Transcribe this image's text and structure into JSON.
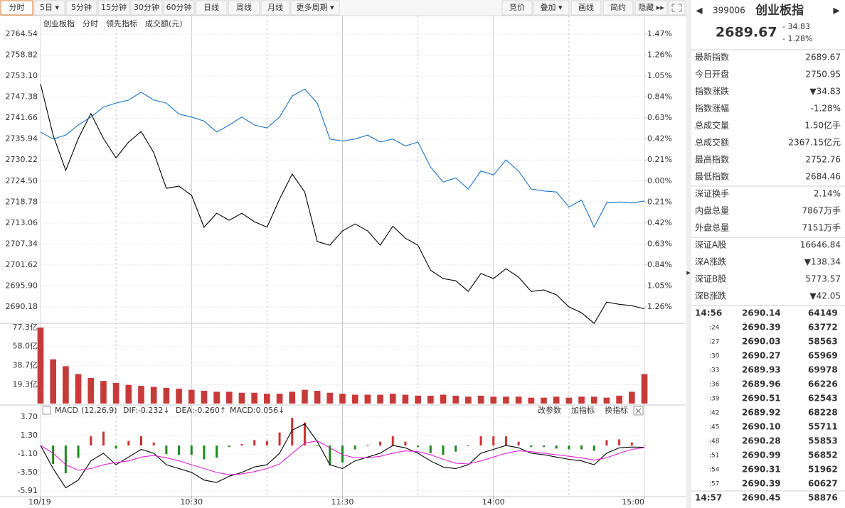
{
  "toolbar": {
    "tabs": [
      "分时",
      "5日 ▾",
      "5分钟",
      "15分钟",
      "30分钟",
      "60分钟",
      "日线",
      "周线",
      "月线",
      "更多周期 ▾"
    ],
    "tools": [
      "竞价",
      "叠加 ▾",
      "画线",
      "简约",
      "隐藏 ▸▸"
    ]
  },
  "chart_data": [
    {
      "type": "line",
      "subtitle": "分时",
      "extra_label": "成交额(元)",
      "xlim": [
        0,
        240
      ],
      "x": [
        0,
        5,
        10,
        15,
        20,
        25,
        30,
        35,
        40,
        45,
        50,
        55,
        60,
        65,
        70,
        75,
        80,
        85,
        90,
        95,
        100,
        105,
        110,
        115,
        120,
        125,
        130,
        135,
        140,
        145,
        150,
        155,
        160,
        165,
        170,
        175,
        180,
        185,
        190,
        195,
        200,
        205,
        210,
        215,
        220,
        225,
        230,
        235,
        240
      ],
      "ylim": [
        2690.18,
        2764.54
      ],
      "yticks": [
        2764.54,
        2758.82,
        {
          "value": 2753.1,
          "label": "2753.10"
        },
        2747.38,
        2741.66,
        2735.94,
        2730.22,
        {
          "value": 2724.5,
          "label": "2724.50"
        },
        2718.78,
        2713.06,
        2707.34,
        2701.62,
        {
          "value": 2695.9,
          "label": "2695.90"
        },
        2690.18
      ],
      "y2lim": [
        -1.26,
        1.47
      ],
      "y2ticks": [
        {
          "value": 1.47,
          "label": "1.47%"
        },
        {
          "value": 1.26,
          "label": "1.26%"
        },
        {
          "value": 1.05,
          "label": "1.05%"
        },
        {
          "value": 0.84,
          "label": "0.84%"
        },
        {
          "value": 0.63,
          "label": "0.63%"
        },
        {
          "value": 0.42,
          "label": "0.42%"
        },
        {
          "value": 0.21,
          "label": "0.21%"
        },
        {
          "value": 0,
          "label": "0.00%"
        },
        {
          "value": -0.21,
          "label": "0.21%"
        },
        {
          "value": -0.42,
          "label": "0.42%"
        },
        {
          "value": -0.63,
          "label": "0.63%"
        },
        {
          "value": -0.84,
          "label": "0.84%"
        },
        {
          "value": -1.05,
          "label": "1.05%"
        },
        {
          "value": -1.26,
          "label": "1.26%"
        }
      ],
      "grid": true,
      "up_color": "#cc0000",
      "down_color": "#008800",
      "flat_color": "#555555",
      "series": [
        {
          "name": "创业板指",
          "color": "#000000",
          "values": [
            2750.95,
            2737.0,
            2727.4,
            2736.1,
            2742.9,
            2736.1,
            2730.8,
            2735.1,
            2738.0,
            2732.2,
            2722.5,
            2723.1,
            2720.6,
            2711.9,
            2715.7,
            2713.8,
            2715.7,
            2713.4,
            2711.9,
            2719.6,
            2726.4,
            2721.5,
            2708.0,
            2707.0,
            2710.9,
            2712.8,
            2710.9,
            2707.0,
            2712.2,
            2708.9,
            2707.0,
            2700.2,
            2697.9,
            2697.3,
            2694.4,
            2699.3,
            2697.9,
            2700.6,
            2698.3,
            2694.4,
            2694.8,
            2693.5,
            2690.2,
            2688.6,
            2685.7,
            2691.5,
            2690.9,
            2690.5,
            2689.67
          ]
        },
        {
          "name": "领先指标",
          "color": "#1a73c8",
          "axis": "y2",
          "values": [
            0.49,
            0.42,
            0.46,
            0.56,
            0.64,
            0.74,
            0.78,
            0.81,
            0.89,
            0.81,
            0.78,
            0.67,
            0.64,
            0.6,
            0.49,
            0.56,
            0.64,
            0.56,
            0.53,
            0.64,
            0.85,
            0.92,
            0.78,
            0.42,
            0.4,
            0.42,
            0.46,
            0.39,
            0.42,
            0.35,
            0.39,
            0.14,
            -0.01,
            0.03,
            -0.08,
            0.1,
            0.06,
            0.21,
            0.1,
            -0.08,
            -0.1,
            -0.11,
            -0.26,
            -0.19,
            -0.46,
            -0.22,
            -0.21,
            -0.22,
            -0.2
          ]
        }
      ]
    },
    {
      "type": "bar",
      "xlim": [
        0,
        240
      ],
      "x": [
        0,
        5,
        10,
        15,
        20,
        25,
        30,
        35,
        40,
        45,
        50,
        55,
        60,
        65,
        70,
        75,
        80,
        85,
        90,
        95,
        100,
        105,
        110,
        115,
        120,
        125,
        130,
        135,
        140,
        145,
        150,
        155,
        160,
        165,
        170,
        175,
        180,
        185,
        190,
        195,
        200,
        205,
        210,
        215,
        220,
        225,
        230,
        235,
        240
      ],
      "ylim": [
        0,
        77.3
      ],
      "yticks": [
        {
          "value": 77.3,
          "label": "77.3亿"
        },
        {
          "value": 58.0,
          "label": "58.0亿"
        },
        {
          "value": 38.7,
          "label": "38.7亿"
        },
        {
          "value": 19.3,
          "label": "19.3亿"
        }
      ],
      "color": "#c83a3a",
      "values": [
        77.3,
        45,
        38,
        30,
        26,
        23,
        21,
        19,
        18,
        17,
        16,
        15,
        14,
        13,
        12,
        12,
        11,
        11,
        10,
        10,
        12,
        14,
        13,
        11,
        10,
        9,
        9,
        9,
        10,
        9,
        8,
        8,
        9,
        8,
        7,
        8,
        7,
        7,
        7,
        6,
        6,
        7,
        6,
        7,
        7,
        6,
        8,
        12,
        30
      ]
    },
    {
      "type": "macd",
      "title": "MACD",
      "params": "(12,26,9)",
      "buttons": [
        "改参数",
        "加指标",
        "换指标"
      ],
      "xlim": [
        0,
        240
      ],
      "x": [
        0,
        5,
        10,
        15,
        20,
        25,
        30,
        35,
        40,
        45,
        50,
        55,
        60,
        65,
        70,
        75,
        80,
        85,
        90,
        95,
        100,
        105,
        110,
        115,
        120,
        125,
        130,
        135,
        140,
        145,
        150,
        155,
        160,
        165,
        170,
        175,
        180,
        185,
        190,
        195,
        200,
        205,
        210,
        215,
        220,
        225,
        230,
        235,
        240
      ],
      "xticks": [
        {
          "value": 0,
          "label": "10/19"
        },
        {
          "value": 60,
          "label": "10:30"
        },
        {
          "value": 120,
          "label": "11:30"
        },
        {
          "value": 180,
          "label": "14:00"
        },
        {
          "value": 240,
          "label": "15:00"
        }
      ],
      "ylim": [
        -5.91,
        3.7
      ],
      "yticks": [
        {
          "value": 3.7,
          "label": "3.70"
        },
        {
          "value": 1.3,
          "label": "1.30"
        },
        {
          "value": -1.1,
          "label": "-1.10"
        },
        {
          "value": -3.5,
          "label": "-3.50"
        },
        -5.91
      ],
      "up_color": "#d03030",
      "down_color": "#1a8a1a",
      "series": [
        {
          "name": "DIF:-0.232↓",
          "color": "#000000",
          "values": [
            0,
            -3.0,
            -5.5,
            -4.5,
            -2.0,
            -1.0,
            -2.5,
            -1.5,
            -0.5,
            -1.0,
            -2.5,
            -3.0,
            -3.5,
            -4.5,
            -4.8,
            -4.0,
            -3.5,
            -2.8,
            -2.5,
            -1.0,
            2.0,
            2.8,
            0.5,
            -2.5,
            -3.0,
            -2.0,
            -1.5,
            -1.0,
            0.0,
            -0.3,
            -1.0,
            -2.0,
            -2.8,
            -3.0,
            -2.5,
            -1.0,
            -0.5,
            0.0,
            -0.3,
            -1.0,
            -1.2,
            -1.5,
            -1.8,
            -2.0,
            -2.5,
            -1.0,
            -0.3,
            -0.2,
            -0.232
          ]
        },
        {
          "name": "DEA:-0.260↑",
          "color": "#e020d8",
          "values": [
            0,
            -1.0,
            -2.5,
            -3.2,
            -3.0,
            -2.5,
            -2.2,
            -2.0,
            -1.5,
            -1.3,
            -1.6,
            -2.0,
            -2.5,
            -3.0,
            -3.5,
            -3.8,
            -3.7,
            -3.4,
            -3.0,
            -2.4,
            -1.0,
            0.3,
            0.6,
            -0.3,
            -1.2,
            -1.6,
            -1.6,
            -1.4,
            -1.0,
            -0.7,
            -0.8,
            -1.2,
            -1.8,
            -2.3,
            -2.4,
            -2.0,
            -1.5,
            -1.0,
            -0.7,
            -0.8,
            -1.0,
            -1.2,
            -1.4,
            -1.6,
            -1.9,
            -1.6,
            -1.0,
            -0.5,
            -0.26
          ]
        },
        {
          "name": "MACD:0.056↓",
          "color": "#d03030",
          "values": [
            0,
            -2.4,
            -3.6,
            -1.6,
            1.2,
            1.8,
            -0.4,
            0.6,
            1.2,
            0.4,
            -1.1,
            -1.2,
            -1.2,
            -1.8,
            -1.6,
            -0.2,
            0.2,
            0.7,
            0.6,
            1.7,
            3.6,
            3.0,
            -0.1,
            -2.6,
            -2.2,
            -0.5,
            0.1,
            0.5,
            1.2,
            0.5,
            -0.2,
            -1.0,
            -1.2,
            -0.8,
            -0.1,
            1.2,
            1.2,
            1.2,
            0.5,
            -0.2,
            -0.2,
            -0.4,
            -0.5,
            -0.5,
            -0.7,
            0.7,
            0.8,
            0.4,
            0.056
          ]
        }
      ]
    }
  ],
  "quote_panel": {
    "code": "399006",
    "name": "创业板指",
    "price": "2689.67",
    "change": "- 34.83",
    "change_pct": "- 1.28%",
    "groups": [
      [
        {
          "label": "最新指数",
          "value": "2689.67",
          "color": "#008800"
        },
        {
          "label": "今日开盘",
          "value": "2750.95",
          "color": "#cc0000"
        },
        {
          "label": "指数涨跌",
          "value": "▼34.83",
          "color": "#008800"
        },
        {
          "label": "指数涨幅",
          "value": "-1.28%",
          "color": "#008800"
        },
        {
          "label": "总成交量",
          "value": "1.50亿手",
          "color": "#222222"
        },
        {
          "label": "总成交额",
          "value": "2367.15亿元",
          "color": "#1a6fbd"
        },
        {
          "label": "最高指数",
          "value": "2752.76",
          "color": "#cc0000"
        },
        {
          "label": "最低指数",
          "value": "2684.46",
          "color": "#008800"
        }
      ],
      [
        {
          "label": "深证换手",
          "value": "2.14%",
          "color": "#222222"
        },
        {
          "label": "内盘总量",
          "value": "7867万手",
          "color": "#008800"
        },
        {
          "label": "外盘总量",
          "value": "7151万手",
          "color": "#cc0000"
        }
      ],
      [
        {
          "label": "深证A股",
          "value": "16646.84",
          "color": "#008800"
        },
        {
          "label": "深A涨跌",
          "value": "▼138.34",
          "color": "#008800"
        },
        {
          "label": "深证B股",
          "value": "5773.57",
          "color": "#008800"
        },
        {
          "label": "深B涨跌",
          "value": "▼42.05",
          "color": "#008800"
        }
      ]
    ],
    "price_color": "#008800",
    "trades": [
      {
        "time": "14:56",
        "price": "2690.14",
        "volume": "64149",
        "volume_color": "#cc0000"
      },
      {
        "time": ":24",
        "price": "2690.39",
        "volume": "63772",
        "volume_color": "#cc0000"
      },
      {
        "time": ":27",
        "price": "2690.03",
        "volume": "58563",
        "volume_color": "#008800"
      },
      {
        "time": ":30",
        "price": "2690.27",
        "volume": "65969",
        "volume_color": "#cc0000"
      },
      {
        "time": ":33",
        "price": "2689.93",
        "volume": "69978",
        "volume_color": "#cc0000"
      },
      {
        "time": ":36",
        "price": "2689.96",
        "volume": "66226",
        "volume_color": "#cc0000"
      },
      {
        "time": ":39",
        "price": "2690.51",
        "volume": "62543",
        "volume_color": "#cc0000"
      },
      {
        "time": ":42",
        "price": "2689.92",
        "volume": "68228",
        "volume_color": "#cc0000"
      },
      {
        "time": ":45",
        "price": "2690.10",
        "volume": "55711",
        "volume_color": "#cc0000"
      },
      {
        "time": ":48",
        "price": "2690.28",
        "volume": "55853",
        "volume_color": "#cc0000"
      },
      {
        "time": ":51",
        "price": "2690.99",
        "volume": "56852",
        "volume_color": "#cc0000"
      },
      {
        "time": ":54",
        "price": "2690.31",
        "volume": "51962",
        "volume_color": "#008800"
      },
      {
        "time": ":57",
        "price": "2690.39",
        "volume": "60627",
        "volume_color": "#cc0000"
      },
      {
        "time": "14:57",
        "price": "2690.45",
        "volume": "58876",
        "volume_color": "#cc0000"
      }
    ]
  }
}
